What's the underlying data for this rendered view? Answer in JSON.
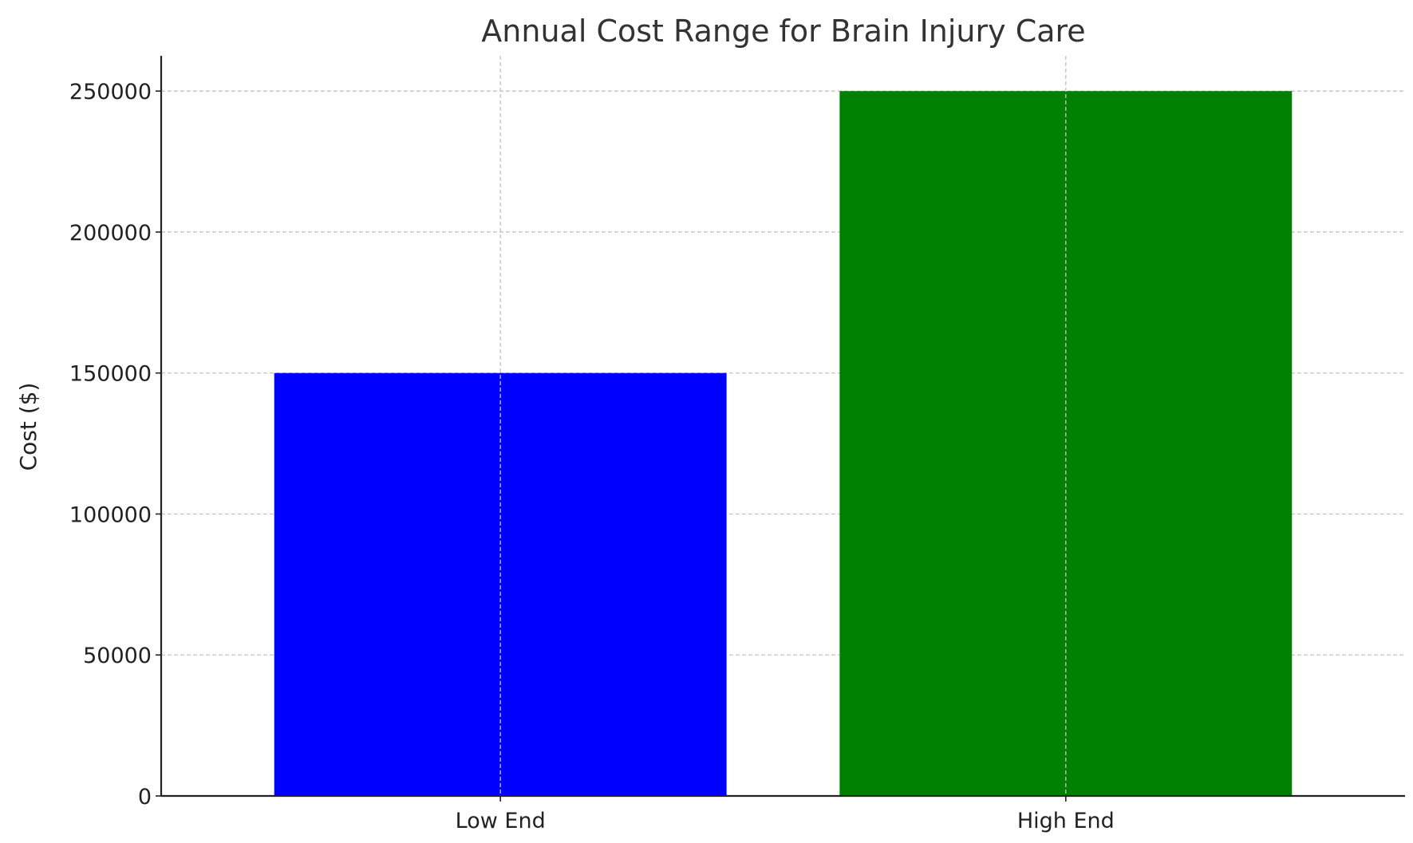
{
  "chart_data": {
    "type": "bar",
    "title": "Annual Cost Range for Brain Injury Care",
    "xlabel": "",
    "ylabel": "Cost ($)",
    "categories": [
      "Low End",
      "High End"
    ],
    "values": [
      150000,
      250000
    ],
    "colors": [
      "#0000ff",
      "#008000"
    ],
    "ylim": [
      0,
      262500
    ],
    "yticks": [
      0,
      50000,
      100000,
      150000,
      200000,
      250000
    ],
    "ytick_labels": [
      "0",
      "50000",
      "100000",
      "150000",
      "200000",
      "250000"
    ],
    "grid": true,
    "legend": "none"
  }
}
